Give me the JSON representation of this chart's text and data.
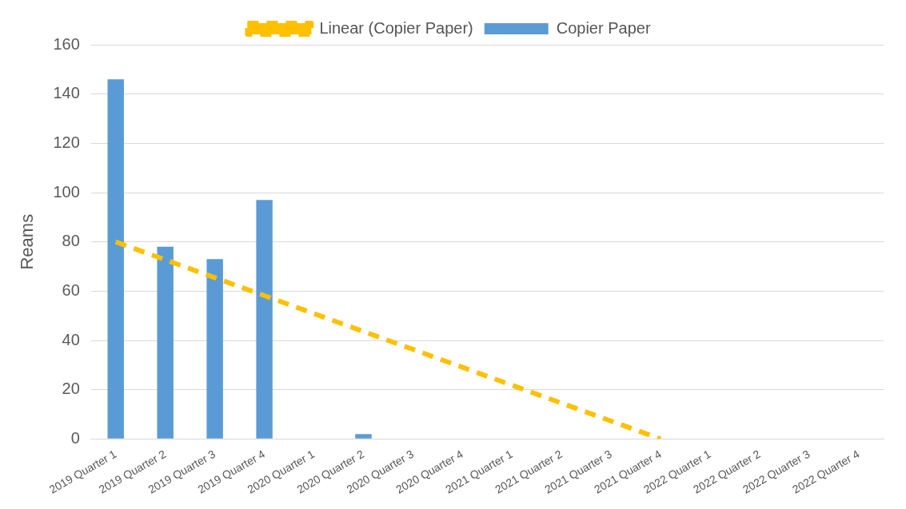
{
  "chart_data": {
    "type": "bar",
    "ylabel": "Reams",
    "categories": [
      "2019 Quarter 1",
      "2019 Quarter 2",
      "2019 Quarter 3",
      "2019 Quarter 4",
      "2020 Quarter 1",
      "2020 Quarter 2",
      "2020 Quarter 3",
      "2020 Quarter 4",
      "2021 Quarter 1",
      "2021 Quarter 2",
      "2021 Quarter 3",
      "2021 Quarter 4",
      "2022 Quarter 1",
      "2022 Quarter 2",
      "2022 Quarter 3",
      "2022 Quarter 4"
    ],
    "series": [
      {
        "name": "Copier Paper",
        "color": "#5b9bd5",
        "values": [
          146,
          78,
          73,
          97,
          0,
          2,
          0,
          0,
          0,
          0,
          0,
          0,
          0,
          0,
          0,
          0
        ]
      },
      {
        "name": "Linear (Copier Paper)",
        "type": "line",
        "color": "#ffc000",
        "line_style": "dashed",
        "marker": "none",
        "x": [
          "2019 Quarter 1",
          "2021 Quarter 4"
        ],
        "values": [
          80,
          0
        ]
      }
    ],
    "ylim": [
      0,
      160
    ],
    "yticks": [
      0,
      20,
      40,
      60,
      80,
      100,
      120,
      140,
      160
    ],
    "grid": "y",
    "legend": "top"
  }
}
